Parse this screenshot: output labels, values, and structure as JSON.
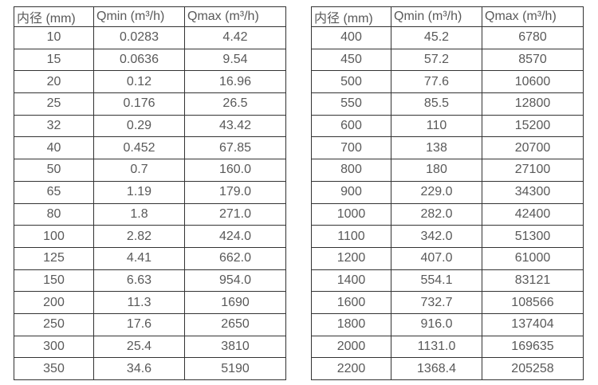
{
  "colors": {
    "background": "#ffffff",
    "border": "#333333",
    "text": "#595959"
  },
  "tables": [
    {
      "name": "small-diameter-flow-ranges",
      "headers": [
        "内径 (mm)",
        "Qmin (m³/h)",
        "Qmax (m³/h)"
      ],
      "rows": [
        [
          "10",
          "0.0283",
          "4.42"
        ],
        [
          "15",
          "0.0636",
          "9.54"
        ],
        [
          "20",
          "0.12",
          "16.96"
        ],
        [
          "25",
          "0.176",
          "26.5"
        ],
        [
          "32",
          "0.29",
          "43.42"
        ],
        [
          "40",
          "0.452",
          "67.85"
        ],
        [
          "50",
          "0.7",
          "160.0"
        ],
        [
          "65",
          "1.19",
          "179.0"
        ],
        [
          "80",
          "1.8",
          "271.0"
        ],
        [
          "100",
          "2.82",
          "424.0"
        ],
        [
          "125",
          "4.41",
          "662.0"
        ],
        [
          "150",
          "6.63",
          "954.0"
        ],
        [
          "200",
          "11.3",
          "1690"
        ],
        [
          "250",
          "17.6",
          "2650"
        ],
        [
          "300",
          "25.4",
          "3810"
        ],
        [
          "350",
          "34.6",
          "5190"
        ]
      ]
    },
    {
      "name": "large-diameter-flow-ranges",
      "headers": [
        "内径 (mm)",
        "Qmin (m³/h)",
        "Qmax (m³/h)"
      ],
      "rows": [
        [
          "400",
          "45.2",
          "6780"
        ],
        [
          "450",
          "57.2",
          "8570"
        ],
        [
          "500",
          "77.6",
          "10600"
        ],
        [
          "550",
          "85.5",
          "12800"
        ],
        [
          "600",
          "110",
          "15200"
        ],
        [
          "700",
          "138",
          "20700"
        ],
        [
          "800",
          "180",
          "27100"
        ],
        [
          "900",
          "229.0",
          "34300"
        ],
        [
          "1000",
          "282.0",
          "42400"
        ],
        [
          "1100",
          "342.0",
          "51300"
        ],
        [
          "1200",
          "407.0",
          "61000"
        ],
        [
          "1400",
          "554.1",
          "83121"
        ],
        [
          "1600",
          "732.7",
          "108566"
        ],
        [
          "1800",
          "916.0",
          "137404"
        ],
        [
          "2000",
          "1131.0",
          "169635"
        ],
        [
          "2200",
          "1368.4",
          "205258"
        ]
      ]
    }
  ]
}
